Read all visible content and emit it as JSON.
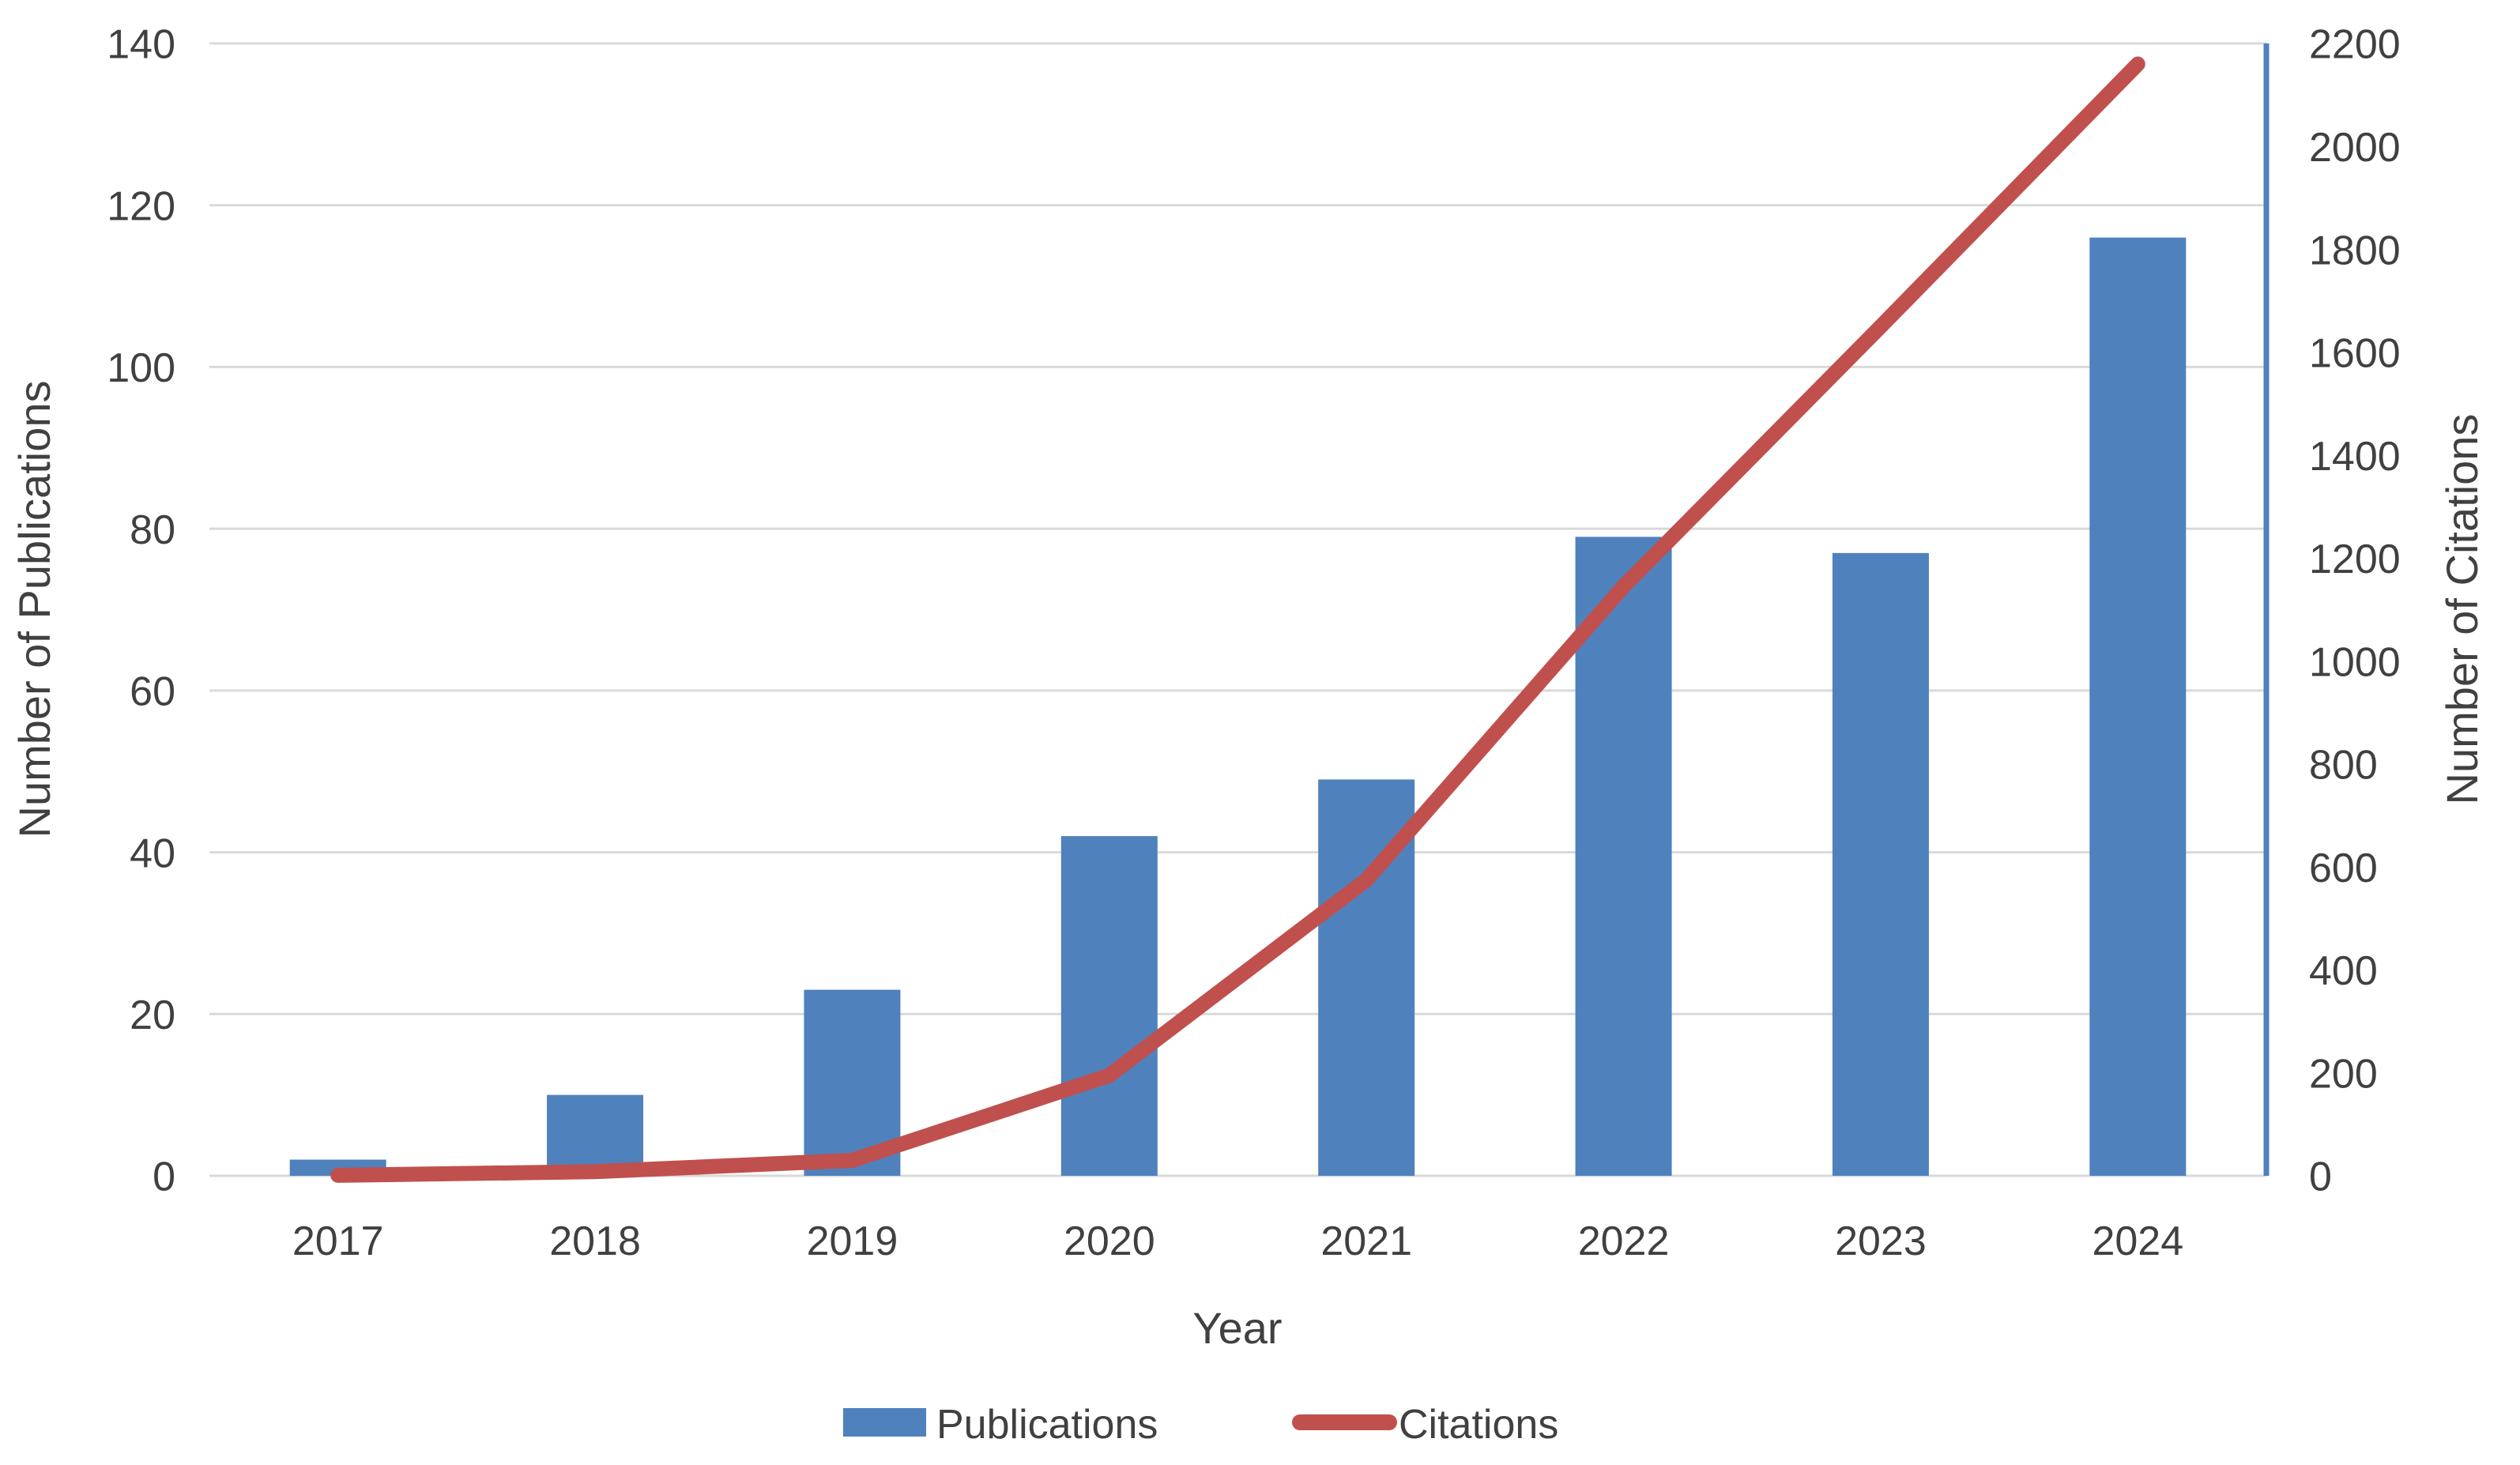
{
  "chart_data": {
    "type": "bar",
    "subtype": "combo-bar-line-dual-axis",
    "title": "",
    "categories": [
      "2017",
      "2018",
      "2019",
      "2020",
      "2021",
      "2022",
      "2023",
      "2024"
    ],
    "series": [
      {
        "name": "Publications",
        "type": "bar",
        "axis": "left",
        "color": "#4F81BD",
        "values": [
          2,
          10,
          23,
          42,
          49,
          79,
          77,
          116
        ]
      },
      {
        "name": "Citations",
        "type": "line",
        "axis": "right",
        "color": "#C0504D",
        "values": [
          1,
          8,
          30,
          195,
          575,
          1145,
          1650,
          2160
        ]
      }
    ],
    "x_axis": {
      "title": "Year",
      "tick_labels": [
        "2017",
        "2018",
        "2019",
        "2020",
        "2021",
        "2022",
        "2023",
        "2024"
      ]
    },
    "left_axis": {
      "title": "Number of Publications",
      "min": 0,
      "max": 140,
      "step": 20,
      "ticks": [
        0,
        20,
        40,
        60,
        80,
        100,
        120,
        140
      ]
    },
    "right_axis": {
      "title": "Number of Citations",
      "min": 0,
      "max": 2200,
      "step": 200,
      "ticks": [
        0,
        200,
        400,
        600,
        800,
        1000,
        1200,
        1400,
        1600,
        1800,
        2000,
        2200
      ]
    },
    "grid": true,
    "legend_position": "bottom",
    "legend": [
      {
        "label": "Publications",
        "swatch": "bar",
        "color": "#4F81BD"
      },
      {
        "label": "Citations",
        "swatch": "line",
        "color": "#C0504D"
      }
    ]
  },
  "colors": {
    "background": "#FFFFFF",
    "gridline": "#D9D9D9",
    "right_axis_line": "#4F81BD",
    "text": "#404040",
    "bar_fill": "#4F81BD",
    "line_stroke": "#C0504D"
  }
}
